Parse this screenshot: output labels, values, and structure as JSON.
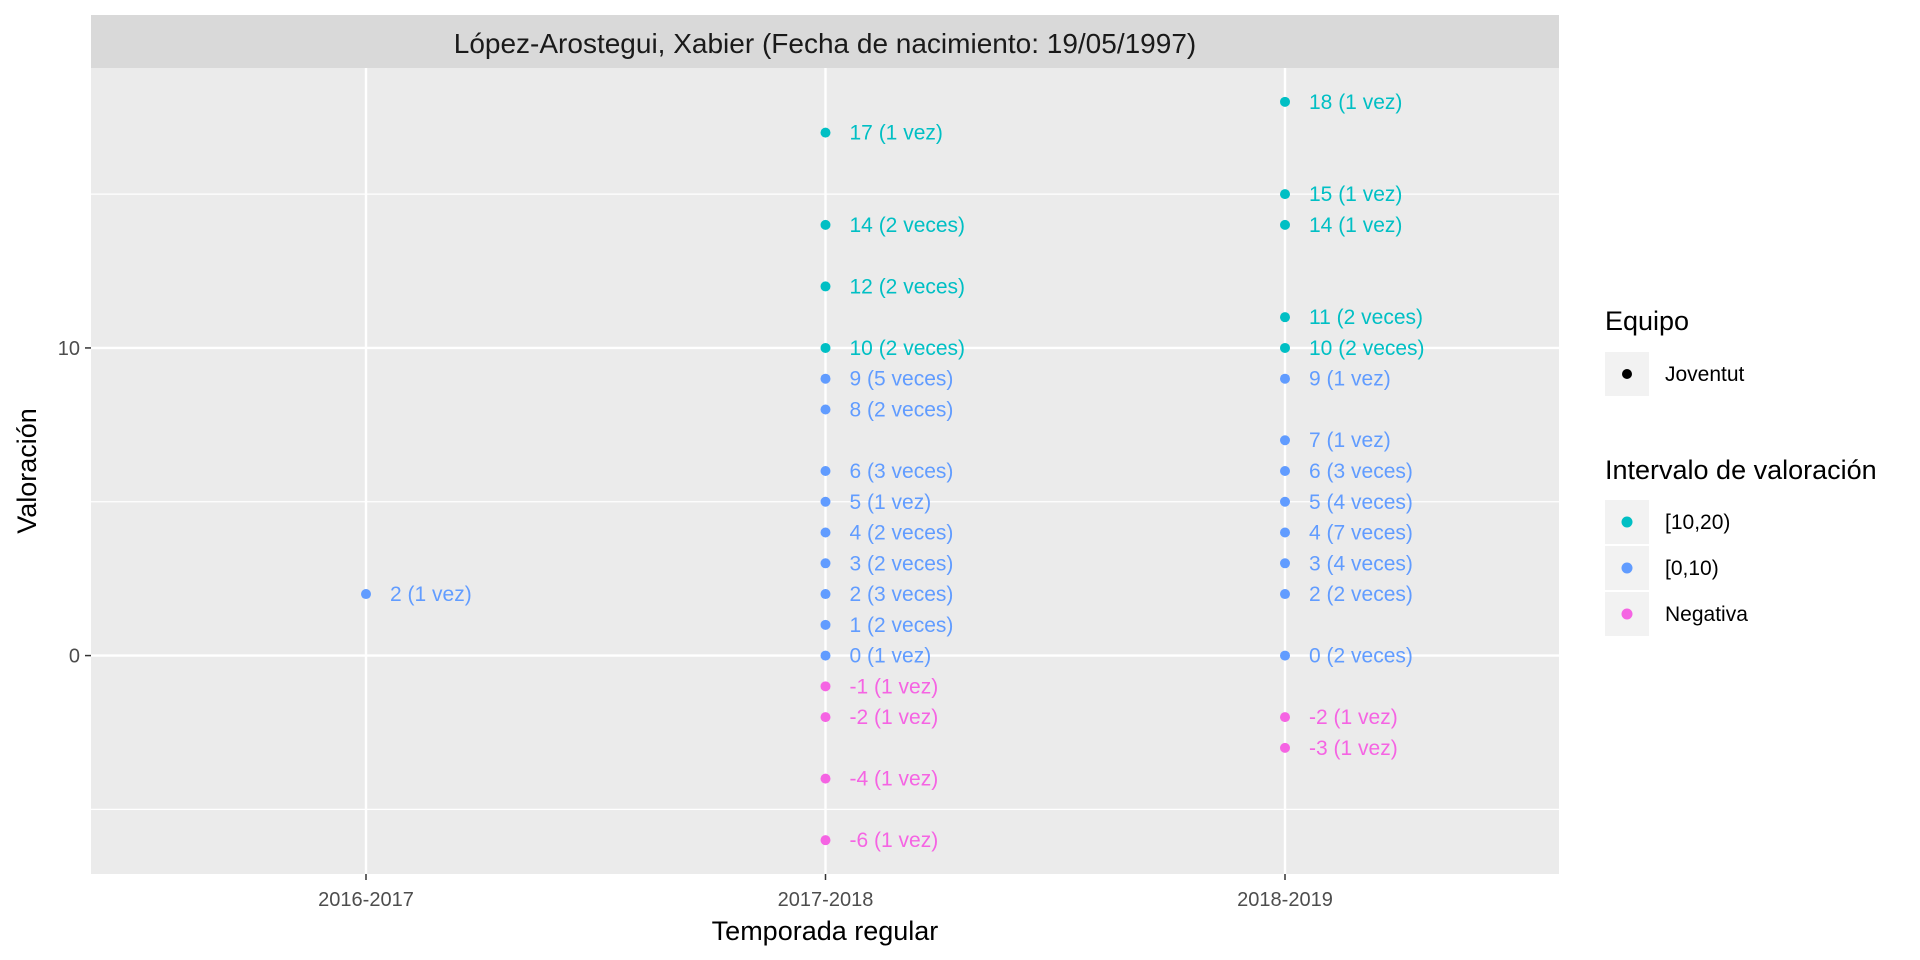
{
  "chart_data": {
    "type": "scatter",
    "facet_title": "López-Arostegui, Xabier (Fecha de nacimiento: 19/05/1997)",
    "xlabel": "Temporada regular",
    "ylabel": "Valoración",
    "categories": [
      "2016-2017",
      "2017-2018",
      "2018-2019"
    ],
    "y_ticks": [
      0,
      10
    ],
    "ylim": [
      -7.1,
      19.1
    ],
    "grid": true,
    "legend_position": "right",
    "colors": {
      "[10,20)": "#00BFC4",
      "[0,10)": "#619CFF",
      "Negativa": "#F564E3"
    },
    "legend": {
      "shape_title": "Equipo",
      "shape_items": [
        "Joventut"
      ],
      "color_title": "Intervalo de valoración",
      "color_items": [
        "[10,20)",
        "[0,10)",
        "Negativa"
      ]
    },
    "points": [
      {
        "x": "2016-2017",
        "y": 2,
        "label": "2 (1 vez)",
        "group": "[0,10)"
      },
      {
        "x": "2017-2018",
        "y": 17,
        "label": "17 (1 vez)",
        "group": "[10,20)"
      },
      {
        "x": "2017-2018",
        "y": 14,
        "label": "14 (2 veces)",
        "group": "[10,20)"
      },
      {
        "x": "2017-2018",
        "y": 12,
        "label": "12 (2 veces)",
        "group": "[10,20)"
      },
      {
        "x": "2017-2018",
        "y": 10,
        "label": "10 (2 veces)",
        "group": "[10,20)"
      },
      {
        "x": "2017-2018",
        "y": 9,
        "label": "9 (5 veces)",
        "group": "[0,10)"
      },
      {
        "x": "2017-2018",
        "y": 8,
        "label": "8 (2 veces)",
        "group": "[0,10)"
      },
      {
        "x": "2017-2018",
        "y": 6,
        "label": "6 (3 veces)",
        "group": "[0,10)"
      },
      {
        "x": "2017-2018",
        "y": 5,
        "label": "5 (1 vez)",
        "group": "[0,10)"
      },
      {
        "x": "2017-2018",
        "y": 4,
        "label": "4 (2 veces)",
        "group": "[0,10)"
      },
      {
        "x": "2017-2018",
        "y": 3,
        "label": "3 (2 veces)",
        "group": "[0,10)"
      },
      {
        "x": "2017-2018",
        "y": 2,
        "label": "2 (3 veces)",
        "group": "[0,10)"
      },
      {
        "x": "2017-2018",
        "y": 1,
        "label": "1 (2 veces)",
        "group": "[0,10)"
      },
      {
        "x": "2017-2018",
        "y": 0,
        "label": "0 (1 vez)",
        "group": "[0,10)"
      },
      {
        "x": "2017-2018",
        "y": -1,
        "label": "-1 (1 vez)",
        "group": "Negativa"
      },
      {
        "x": "2017-2018",
        "y": -2,
        "label": "-2 (1 vez)",
        "group": "Negativa"
      },
      {
        "x": "2017-2018",
        "y": -4,
        "label": "-4 (1 vez)",
        "group": "Negativa"
      },
      {
        "x": "2017-2018",
        "y": -6,
        "label": "-6 (1 vez)",
        "group": "Negativa"
      },
      {
        "x": "2018-2019",
        "y": 18,
        "label": "18 (1 vez)",
        "group": "[10,20)"
      },
      {
        "x": "2018-2019",
        "y": 15,
        "label": "15 (1 vez)",
        "group": "[10,20)"
      },
      {
        "x": "2018-2019",
        "y": 14,
        "label": "14 (1 vez)",
        "group": "[10,20)"
      },
      {
        "x": "2018-2019",
        "y": 11,
        "label": "11 (2 veces)",
        "group": "[10,20)"
      },
      {
        "x": "2018-2019",
        "y": 10,
        "label": "10 (2 veces)",
        "group": "[10,20)"
      },
      {
        "x": "2018-2019",
        "y": 9,
        "label": "9 (1 vez)",
        "group": "[0,10)"
      },
      {
        "x": "2018-2019",
        "y": 7,
        "label": "7 (1 vez)",
        "group": "[0,10)"
      },
      {
        "x": "2018-2019",
        "y": 6,
        "label": "6 (3 veces)",
        "group": "[0,10)"
      },
      {
        "x": "2018-2019",
        "y": 5,
        "label": "5 (4 veces)",
        "group": "[0,10)"
      },
      {
        "x": "2018-2019",
        "y": 4,
        "label": "4 (7 veces)",
        "group": "[0,10)"
      },
      {
        "x": "2018-2019",
        "y": 3,
        "label": "3 (4 veces)",
        "group": "[0,10)"
      },
      {
        "x": "2018-2019",
        "y": 2,
        "label": "2 (2 veces)",
        "group": "[0,10)"
      },
      {
        "x": "2018-2019",
        "y": 0,
        "label": "0 (2 veces)",
        "group": "[0,10)"
      },
      {
        "x": "2018-2019",
        "y": -2,
        "label": "-2 (1 vez)",
        "group": "Negativa"
      },
      {
        "x": "2018-2019",
        "y": -3,
        "label": "-3 (1 vez)",
        "group": "Negativa"
      }
    ]
  }
}
